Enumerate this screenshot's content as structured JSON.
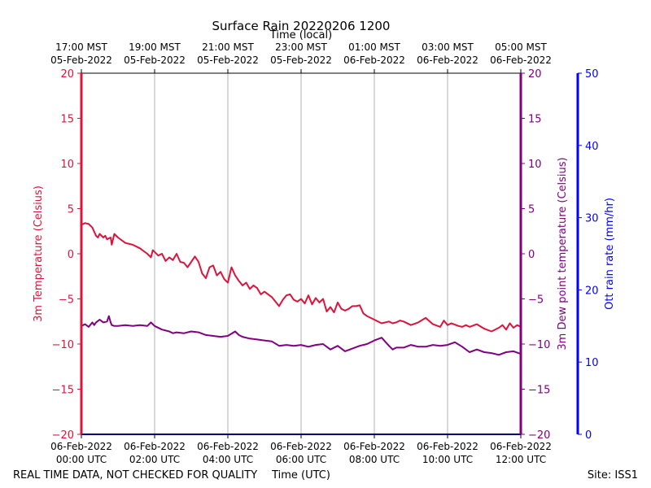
{
  "chart_data": {
    "type": "line",
    "title": "Surface Rain 20220206 1200",
    "top_axis_label": "Time (local)",
    "xlabel": "Time (UTC)",
    "ylabel_left": "3m Temperature (Celsius)",
    "ylabel_right": "3m Dew point temperature (Celsius)",
    "ylabel_far_right": "Ott rain rate (mm/hr)",
    "footer_left": "REAL TIME DATA, NOT CHECKED FOR QUALITY",
    "footer_right": "Site: ISS1",
    "x_unit": "hours since 06-Feb-2022 00:00 UTC",
    "xlim": [
      0,
      12
    ],
    "ylim": [
      -20,
      20
    ],
    "ylim_rain": [
      0,
      50
    ],
    "y_ticks": [
      -20,
      -15,
      -10,
      -5,
      0,
      5,
      10,
      15,
      20
    ],
    "rain_ticks": [
      0,
      10,
      20,
      30,
      40,
      50
    ],
    "grid": "vertical",
    "utc_ticks": [
      {
        "x": 0,
        "line1": "06-Feb-2022",
        "line2": "00:00 UTC"
      },
      {
        "x": 2,
        "line1": "06-Feb-2022",
        "line2": "02:00 UTC"
      },
      {
        "x": 4,
        "line1": "06-Feb-2022",
        "line2": "04:00 UTC"
      },
      {
        "x": 6,
        "line1": "06-Feb-2022",
        "line2": "06:00 UTC"
      },
      {
        "x": 8,
        "line1": "06-Feb-2022",
        "line2": "08:00 UTC"
      },
      {
        "x": 10,
        "line1": "06-Feb-2022",
        "line2": "10:00 UTC"
      },
      {
        "x": 12,
        "line1": "06-Feb-2022",
        "line2": "12:00 UTC"
      }
    ],
    "local_ticks": [
      {
        "x": 0,
        "line1": "17:00 MST",
        "line2": "05-Feb-2022"
      },
      {
        "x": 2,
        "line1": "19:00 MST",
        "line2": "05-Feb-2022"
      },
      {
        "x": 4,
        "line1": "21:00 MST",
        "line2": "05-Feb-2022"
      },
      {
        "x": 6,
        "line1": "23:00 MST",
        "line2": "05-Feb-2022"
      },
      {
        "x": 8,
        "line1": "01:00 MST",
        "line2": "06-Feb-2022"
      },
      {
        "x": 10,
        "line1": "03:00 MST",
        "line2": "06-Feb-2022"
      },
      {
        "x": 12,
        "line1": "05:00 MST",
        "line2": "06-Feb-2022"
      }
    ],
    "colors": {
      "temperature": "#dc143c",
      "dewpoint": "#800080",
      "rain": "#0000ff",
      "grid": "#b0b0b0"
    },
    "series": [
      {
        "name": "3m Temperature",
        "color": "#dc143c",
        "x": [
          0,
          0.1,
          0.2,
          0.3,
          0.4,
          0.45,
          0.5,
          0.6,
          0.65,
          0.7,
          0.8,
          0.83,
          0.9,
          1.0,
          1.2,
          1.4,
          1.6,
          1.8,
          1.9,
          1.95,
          2.1,
          2.2,
          2.3,
          2.4,
          2.5,
          2.6,
          2.7,
          2.8,
          2.9,
          3.0,
          3.1,
          3.2,
          3.3,
          3.4,
          3.5,
          3.6,
          3.7,
          3.8,
          3.9,
          4.0,
          4.1,
          4.2,
          4.3,
          4.4,
          4.5,
          4.6,
          4.7,
          4.8,
          4.9,
          5.0,
          5.2,
          5.4,
          5.5,
          5.6,
          5.7,
          5.8,
          5.9,
          6.0,
          6.1,
          6.2,
          6.3,
          6.4,
          6.5,
          6.6,
          6.7,
          6.8,
          6.9,
          7.0,
          7.1,
          7.2,
          7.3,
          7.4,
          7.5,
          7.6,
          7.7,
          7.8,
          8.0,
          8.2,
          8.4,
          8.5,
          8.6,
          8.7,
          8.8,
          9.0,
          9.2,
          9.4,
          9.6,
          9.8,
          9.9,
          10.0,
          10.1,
          10.3,
          10.4,
          10.5,
          10.6,
          10.8,
          11.0,
          11.2,
          11.4,
          11.5,
          11.6,
          11.7,
          11.8,
          11.9,
          12.0
        ],
        "values": [
          3.2,
          3.4,
          3.3,
          2.9,
          2.0,
          1.8,
          2.2,
          1.8,
          2.0,
          1.6,
          1.8,
          1.0,
          2.2,
          1.8,
          1.2,
          1.0,
          0.6,
          0.0,
          -0.4,
          0.4,
          -0.2,
          0.0,
          -0.8,
          -0.4,
          -0.7,
          0.0,
          -0.9,
          -1.0,
          -1.5,
          -0.9,
          -0.3,
          -0.9,
          -2.2,
          -2.7,
          -1.5,
          -1.3,
          -2.4,
          -2.0,
          -2.8,
          -3.2,
          -1.5,
          -2.4,
          -3.0,
          -3.5,
          -3.2,
          -3.9,
          -3.5,
          -3.8,
          -4.5,
          -4.2,
          -4.8,
          -5.8,
          -5.1,
          -4.6,
          -4.5,
          -5.1,
          -5.3,
          -5.0,
          -5.5,
          -4.6,
          -5.6,
          -4.9,
          -5.4,
          -5.0,
          -6.4,
          -5.9,
          -6.5,
          -5.4,
          -6.1,
          -6.3,
          -6.1,
          -5.8,
          -5.8,
          -5.7,
          -6.6,
          -6.9,
          -7.3,
          -7.7,
          -7.5,
          -7.7,
          -7.6,
          -7.4,
          -7.5,
          -7.9,
          -7.6,
          -7.1,
          -7.8,
          -8.1,
          -7.4,
          -7.9,
          -7.7,
          -8.0,
          -8.1,
          -7.9,
          -8.1,
          -7.8,
          -8.3,
          -8.6,
          -8.2,
          -7.9,
          -8.4,
          -7.7,
          -8.2,
          -7.9,
          -8.1
        ]
      },
      {
        "name": "3m Dew point temperature",
        "color": "#800080",
        "x": [
          0,
          0.1,
          0.2,
          0.3,
          0.35,
          0.4,
          0.5,
          0.6,
          0.7,
          0.75,
          0.8,
          0.83,
          0.9,
          1.0,
          1.2,
          1.4,
          1.6,
          1.8,
          1.9,
          2.0,
          2.2,
          2.4,
          2.5,
          2.6,
          2.8,
          3.0,
          3.2,
          3.4,
          3.6,
          3.8,
          4.0,
          4.2,
          4.3,
          4.4,
          4.6,
          4.8,
          5.0,
          5.2,
          5.4,
          5.6,
          5.8,
          6.0,
          6.2,
          6.4,
          6.6,
          6.8,
          7.0,
          7.2,
          7.4,
          7.6,
          7.8,
          8.0,
          8.2,
          8.4,
          8.5,
          8.6,
          8.8,
          9.0,
          9.2,
          9.4,
          9.6,
          9.8,
          10.0,
          10.2,
          10.4,
          10.6,
          10.8,
          11.0,
          11.2,
          11.4,
          11.6,
          11.8,
          12.0
        ],
        "values": [
          -8.0,
          -7.8,
          -8.1,
          -7.6,
          -7.9,
          -7.6,
          -7.3,
          -7.6,
          -7.5,
          -6.9,
          -7.6,
          -7.9,
          -8.0,
          -8.0,
          -7.9,
          -8.0,
          -7.9,
          -8.0,
          -7.6,
          -8.0,
          -8.4,
          -8.6,
          -8.8,
          -8.7,
          -8.8,
          -8.6,
          -8.7,
          -9.0,
          -9.1,
          -9.2,
          -9.1,
          -8.6,
          -9.0,
          -9.2,
          -9.4,
          -9.5,
          -9.6,
          -9.7,
          -10.2,
          -10.1,
          -10.2,
          -10.1,
          -10.3,
          -10.1,
          -10.0,
          -10.6,
          -10.2,
          -10.8,
          -10.5,
          -10.2,
          -10.0,
          -9.6,
          -9.3,
          -10.2,
          -10.6,
          -10.4,
          -10.4,
          -10.1,
          -10.3,
          -10.3,
          -10.1,
          -10.2,
          -10.1,
          -9.8,
          -10.3,
          -10.9,
          -10.6,
          -10.9,
          -11.0,
          -11.2,
          -10.9,
          -10.8,
          -11.1
        ]
      }
    ]
  }
}
